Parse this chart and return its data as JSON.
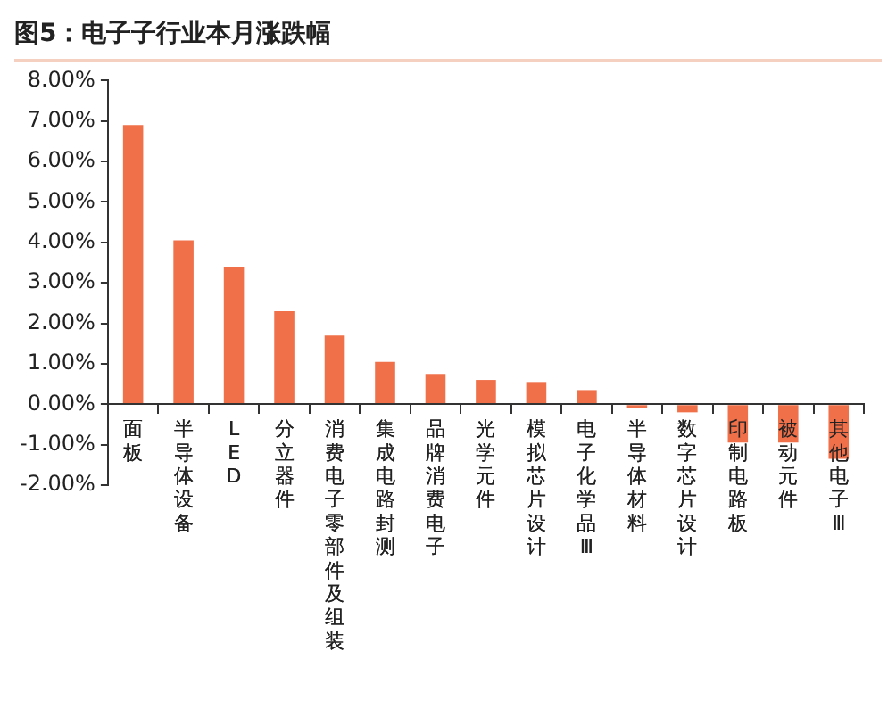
{
  "chart_data": {
    "type": "bar",
    "title": "图5：电子子行业本月涨跌幅",
    "categories": [
      "面板",
      "半导体设备",
      "LED",
      "分立器件",
      "消费电子零部件及组装",
      "集成电路封测",
      "品牌消费电子",
      "光学元件",
      "模拟芯片设计",
      "电子化学品Ⅲ",
      "半导体材料",
      "数字芯片设计",
      "印制电路板",
      "被动元件",
      "其他电子Ⅲ"
    ],
    "values": [
      6.9,
      4.05,
      3.4,
      2.3,
      1.7,
      1.05,
      0.75,
      0.6,
      0.55,
      0.35,
      -0.1,
      -0.2,
      -0.95,
      -0.95,
      -1.35
    ],
    "color": "#f0704a",
    "ylim": [
      -2,
      8
    ],
    "yticks": [
      {
        "value": -2,
        "label": "-2.00%"
      },
      {
        "value": -1,
        "label": "-1.00%"
      },
      {
        "value": 0,
        "label": "0.00%"
      },
      {
        "value": 1,
        "label": "1.00%"
      },
      {
        "value": 2,
        "label": "2.00%"
      },
      {
        "value": 3,
        "label": "3.00%"
      },
      {
        "value": 4,
        "label": "4.00%"
      },
      {
        "value": 5,
        "label": "5.00%"
      },
      {
        "value": 6,
        "label": "6.00%"
      },
      {
        "value": 7,
        "label": "7.00%"
      },
      {
        "value": 8,
        "label": "8.00%"
      }
    ],
    "grid": false,
    "legend": false
  }
}
